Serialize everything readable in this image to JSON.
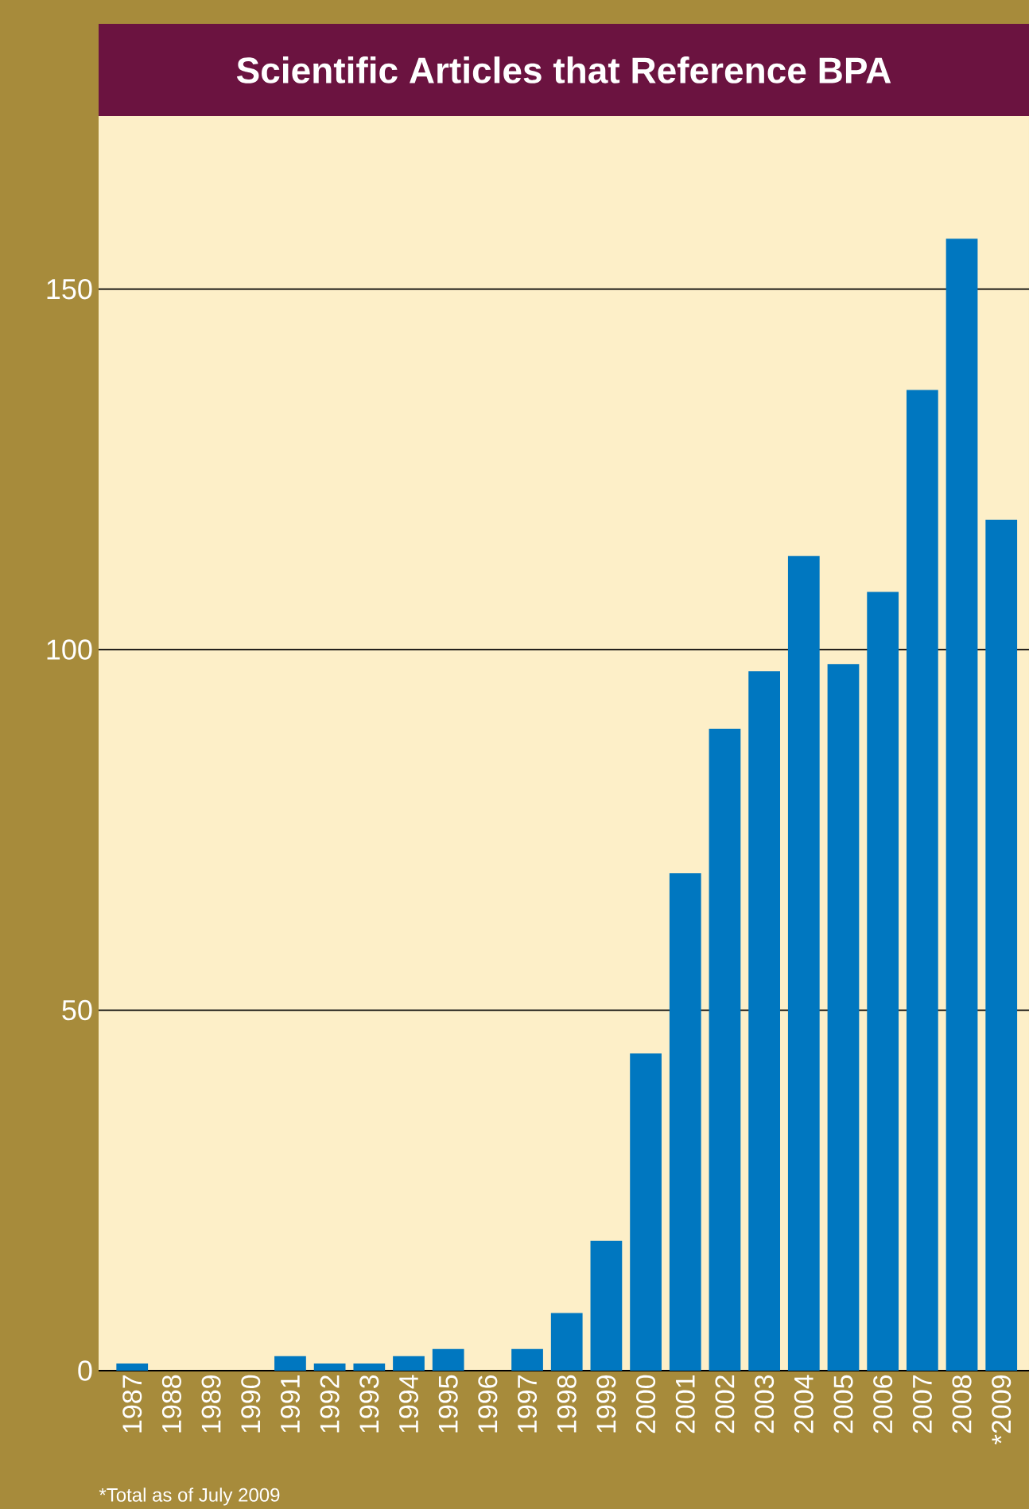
{
  "chart_data": {
    "type": "bar",
    "title": "Scientific Articles that Reference BPA",
    "categories": [
      "1987",
      "1988",
      "1989",
      "1990",
      "1991",
      "1992",
      "1993",
      "1994",
      "1995",
      "1996",
      "1997",
      "1998",
      "1999",
      "2000",
      "2001",
      "2002",
      "2003",
      "2004",
      "2005",
      "2006",
      "2007",
      "2008",
      "*2009"
    ],
    "values": [
      1,
      0,
      0,
      0,
      2,
      1,
      1,
      2,
      3,
      0,
      3,
      8,
      18,
      44,
      69,
      89,
      97,
      113,
      98,
      108,
      136,
      157,
      118
    ],
    "color": "#0077c0",
    "ylim": [
      0,
      174
    ],
    "yticks": [
      0,
      50,
      100,
      150
    ],
    "grid": "y",
    "annotations": [
      "*Total as of July 2009"
    ]
  }
}
